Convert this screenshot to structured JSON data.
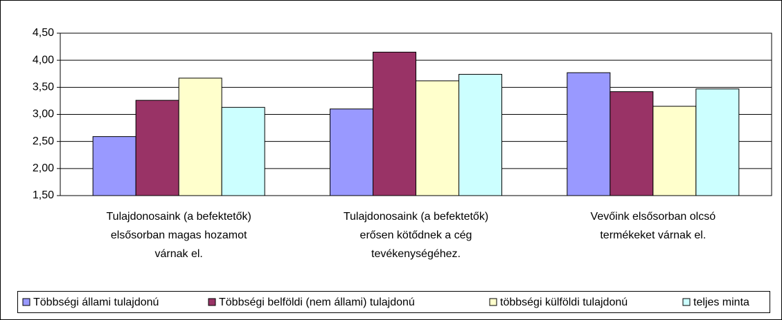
{
  "chart_data": {
    "type": "bar",
    "categories": [
      [
        "Tulajdonosaink (a befektetők)",
        "elsősorban magas hozamot",
        "várnak el."
      ],
      [
        "Tulajdonosaink (a befektetők)",
        "erősen kötődnek a cég",
        "tevékenységéhez."
      ],
      [
        "Vevőink elsősorban olcsó",
        "termékeket várnak el."
      ]
    ],
    "series": [
      {
        "name": "Többségi állami tulajdonú",
        "color": "#9999ff",
        "values": [
          2.59,
          3.1,
          3.77
        ]
      },
      {
        "name": "Többségi belföldi (nem állami) tulajdonú",
        "color": "#993366",
        "values": [
          3.26,
          4.15,
          3.42
        ]
      },
      {
        "name": "többségi külföldi tulajdonú",
        "color": "#ffffcc",
        "values": [
          3.67,
          3.62,
          3.15
        ]
      },
      {
        "name": "teljes minta",
        "color": "#ccffff",
        "values": [
          3.13,
          3.74,
          3.47
        ]
      }
    ],
    "ylim": [
      1.5,
      4.5
    ],
    "yticks": [
      {
        "value": 1.5,
        "label": "1,50"
      },
      {
        "value": 2,
        "label": "2,00"
      },
      {
        "value": 2.5,
        "label": "2,50"
      },
      {
        "value": 3,
        "label": "3,00"
      },
      {
        "value": 3.5,
        "label": "3,50"
      },
      {
        "value": 4,
        "label": "4,00"
      },
      {
        "value": 4.5,
        "label": "4,50"
      }
    ],
    "grid": true,
    "legend": "bottom"
  }
}
